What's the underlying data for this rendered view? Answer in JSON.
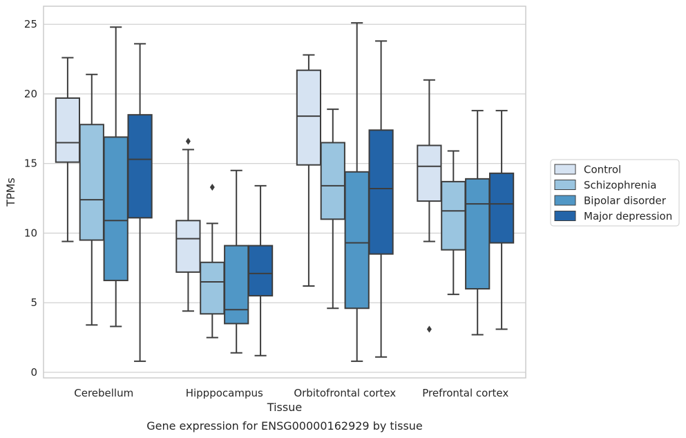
{
  "caption": "Gene expression for ENSG00000162929 by tissue",
  "colors": {
    "Control": "#d6e3f2",
    "Schizophrenia": "#9ac5e0",
    "Bipolar disorder": "#5097c6",
    "Major depression": "#2364a8",
    "box_line": "#3d3d3d",
    "grid": "#cccccc",
    "frame": "#cccccc"
  },
  "chart_data": {
    "type": "boxplot",
    "xlabel": "Tissue",
    "ylabel": "TPMs",
    "ylim": [
      -0.4,
      26.3
    ],
    "yticks": [
      0,
      5,
      10,
      15,
      20,
      25
    ],
    "grid": true,
    "legend_position": "right",
    "categories": [
      "Cerebellum",
      "Hipppocampus",
      "Orbitofrontal cortex",
      "Prefrontal cortex"
    ],
    "series": [
      {
        "name": "Control",
        "boxes": [
          {
            "whisker_low": 9.4,
            "q1": 15.1,
            "median": 16.5,
            "q3": 19.7,
            "whisker_high": 22.6,
            "outliers": []
          },
          {
            "whisker_low": 4.4,
            "q1": 7.2,
            "median": 9.6,
            "q3": 10.9,
            "whisker_high": 16.0,
            "outliers": [
              16.6
            ]
          },
          {
            "whisker_low": 6.2,
            "q1": 14.9,
            "median": 18.4,
            "q3": 21.7,
            "whisker_high": 22.8,
            "outliers": []
          },
          {
            "whisker_low": 9.4,
            "q1": 12.3,
            "median": 14.8,
            "q3": 16.3,
            "whisker_high": 21.0,
            "outliers": [
              3.1
            ]
          }
        ]
      },
      {
        "name": "Schizophrenia",
        "boxes": [
          {
            "whisker_low": 3.4,
            "q1": 9.5,
            "median": 12.4,
            "q3": 17.8,
            "whisker_high": 21.4,
            "outliers": []
          },
          {
            "whisker_low": 2.5,
            "q1": 4.2,
            "median": 6.5,
            "q3": 7.9,
            "whisker_high": 10.7,
            "outliers": [
              13.3
            ]
          },
          {
            "whisker_low": 4.6,
            "q1": 11.0,
            "median": 13.4,
            "q3": 16.5,
            "whisker_high": 18.9,
            "outliers": []
          },
          {
            "whisker_low": 5.6,
            "q1": 8.8,
            "median": 11.6,
            "q3": 13.7,
            "whisker_high": 15.9,
            "outliers": []
          }
        ]
      },
      {
        "name": "Bipolar disorder",
        "boxes": [
          {
            "whisker_low": 3.3,
            "q1": 6.6,
            "median": 10.9,
            "q3": 16.9,
            "whisker_high": 24.8,
            "outliers": []
          },
          {
            "whisker_low": 1.4,
            "q1": 3.5,
            "median": 4.5,
            "q3": 9.1,
            "whisker_high": 14.5,
            "outliers": []
          },
          {
            "whisker_low": 0.8,
            "q1": 4.6,
            "median": 9.3,
            "q3": 14.4,
            "whisker_high": 25.1,
            "outliers": []
          },
          {
            "whisker_low": 2.7,
            "q1": 6.0,
            "median": 12.1,
            "q3": 13.9,
            "whisker_high": 18.8,
            "outliers": []
          }
        ]
      },
      {
        "name": "Major depression",
        "boxes": [
          {
            "whisker_low": 0.8,
            "q1": 11.1,
            "median": 15.3,
            "q3": 18.5,
            "whisker_high": 23.6,
            "outliers": []
          },
          {
            "whisker_low": 1.2,
            "q1": 5.5,
            "median": 7.1,
            "q3": 9.1,
            "whisker_high": 13.4,
            "outliers": []
          },
          {
            "whisker_low": 1.1,
            "q1": 8.5,
            "median": 13.2,
            "q3": 17.4,
            "whisker_high": 23.8,
            "outliers": []
          },
          {
            "whisker_low": 3.1,
            "q1": 9.3,
            "median": 12.1,
            "q3": 14.3,
            "whisker_high": 18.8,
            "outliers": []
          }
        ]
      }
    ]
  }
}
